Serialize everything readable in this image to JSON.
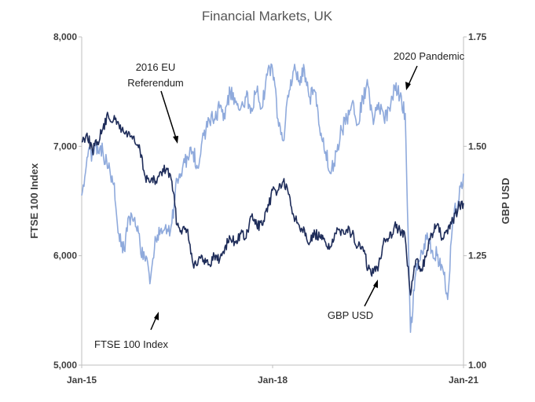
{
  "chart_data": {
    "type": "line",
    "title": "Financial Markets, UK",
    "x_ticks": [
      "Jan-15",
      "Jan-18",
      "Jan-21"
    ],
    "x_range": [
      "2015-01",
      "2021-01"
    ],
    "y_left": {
      "label": "FTSE  100  Index",
      "range": [
        5000,
        8000
      ],
      "ticks": [
        "5,000",
        "6,000",
        "7,000",
        "8,000"
      ]
    },
    "y_right": {
      "label": "GBP  USD",
      "range": [
        1.0,
        1.75
      ],
      "ticks": [
        "1.00",
        "1.25",
        "1.50",
        "1.75"
      ]
    },
    "grid": false,
    "colors": {
      "ftse": "#8faadc",
      "gbpusd": "#1f2d5a",
      "axis": "#bfbfbf"
    },
    "series": [
      {
        "name": "FTSE 100 Index",
        "axis": "left",
        "points": [
          [
            "2015-01",
            6550
          ],
          [
            "2015-02",
            6900
          ],
          [
            "2015-03",
            6950
          ],
          [
            "2015-04",
            7000
          ],
          [
            "2015-05",
            6950
          ],
          [
            "2015-06",
            6800
          ],
          [
            "2015-07",
            6650
          ],
          [
            "2015-08",
            6200
          ],
          [
            "2015-09",
            6050
          ],
          [
            "2015-10",
            6350
          ],
          [
            "2015-11",
            6350
          ],
          [
            "2015-12",
            6100
          ],
          [
            "2016-01",
            5950
          ],
          [
            "2016-02",
            5800
          ],
          [
            "2016-03",
            6150
          ],
          [
            "2016-04",
            6250
          ],
          [
            "2016-05",
            6200
          ],
          [
            "2016-06",
            6300
          ],
          [
            "2016-07",
            6700
          ],
          [
            "2016-08",
            6800
          ],
          [
            "2016-09",
            6900
          ],
          [
            "2016-10",
            6950
          ],
          [
            "2016-11",
            6800
          ],
          [
            "2016-12",
            7100
          ],
          [
            "2017-01",
            7250
          ],
          [
            "2017-02",
            7250
          ],
          [
            "2017-03",
            7350
          ],
          [
            "2017-04",
            7250
          ],
          [
            "2017-05",
            7500
          ],
          [
            "2017-06",
            7400
          ],
          [
            "2017-07",
            7350
          ],
          [
            "2017-08",
            7450
          ],
          [
            "2017-09",
            7350
          ],
          [
            "2017-10",
            7500
          ],
          [
            "2017-11",
            7350
          ],
          [
            "2017-12",
            7650
          ],
          [
            "2018-01",
            7700
          ],
          [
            "2018-02",
            7250
          ],
          [
            "2018-03",
            7050
          ],
          [
            "2018-04",
            7450
          ],
          [
            "2018-05",
            7700
          ],
          [
            "2018-06",
            7600
          ],
          [
            "2018-07",
            7700
          ],
          [
            "2018-08",
            7450
          ],
          [
            "2018-09",
            7500
          ],
          [
            "2018-10",
            7100
          ],
          [
            "2018-11",
            6950
          ],
          [
            "2018-12",
            6750
          ],
          [
            "2019-01",
            6950
          ],
          [
            "2019-02",
            7150
          ],
          [
            "2019-03",
            7250
          ],
          [
            "2019-04",
            7400
          ],
          [
            "2019-05",
            7200
          ],
          [
            "2019-06",
            7450
          ],
          [
            "2019-07",
            7550
          ],
          [
            "2019-08",
            7200
          ],
          [
            "2019-09",
            7400
          ],
          [
            "2019-10",
            7250
          ],
          [
            "2019-11",
            7350
          ],
          [
            "2019-12",
            7550
          ],
          [
            "2020-01",
            7450
          ],
          [
            "2020-02",
            7300
          ],
          [
            "2020-03",
            5300
          ],
          [
            "2020-04",
            5850
          ],
          [
            "2020-05",
            6050
          ],
          [
            "2020-06",
            6150
          ],
          [
            "2020-07",
            6050
          ],
          [
            "2020-08",
            6000
          ],
          [
            "2020-09",
            5900
          ],
          [
            "2020-10",
            5600
          ],
          [
            "2020-11",
            6350
          ],
          [
            "2020-12",
            6500
          ],
          [
            "2021-01",
            6750
          ]
        ]
      },
      {
        "name": "GBP USD",
        "axis": "right",
        "points": [
          [
            "2015-01",
            1.51
          ],
          [
            "2015-02",
            1.53
          ],
          [
            "2015-03",
            1.49
          ],
          [
            "2015-04",
            1.51
          ],
          [
            "2015-05",
            1.54
          ],
          [
            "2015-06",
            1.57
          ],
          [
            "2015-07",
            1.56
          ],
          [
            "2015-08",
            1.55
          ],
          [
            "2015-09",
            1.53
          ],
          [
            "2015-10",
            1.53
          ],
          [
            "2015-11",
            1.51
          ],
          [
            "2015-12",
            1.49
          ],
          [
            "2016-01",
            1.43
          ],
          [
            "2016-02",
            1.42
          ],
          [
            "2016-03",
            1.42
          ],
          [
            "2016-04",
            1.44
          ],
          [
            "2016-05",
            1.45
          ],
          [
            "2016-06",
            1.42
          ],
          [
            "2016-07",
            1.32
          ],
          [
            "2016-08",
            1.31
          ],
          [
            "2016-09",
            1.31
          ],
          [
            "2016-10",
            1.23
          ],
          [
            "2016-11",
            1.24
          ],
          [
            "2016-12",
            1.24
          ],
          [
            "2017-01",
            1.23
          ],
          [
            "2017-02",
            1.25
          ],
          [
            "2017-03",
            1.24
          ],
          [
            "2017-04",
            1.27
          ],
          [
            "2017-05",
            1.29
          ],
          [
            "2017-06",
            1.28
          ],
          [
            "2017-07",
            1.3
          ],
          [
            "2017-08",
            1.29
          ],
          [
            "2017-09",
            1.34
          ],
          [
            "2017-10",
            1.32
          ],
          [
            "2017-11",
            1.32
          ],
          [
            "2017-12",
            1.35
          ],
          [
            "2018-01",
            1.4
          ],
          [
            "2018-02",
            1.4
          ],
          [
            "2018-03",
            1.42
          ],
          [
            "2018-04",
            1.39
          ],
          [
            "2018-05",
            1.34
          ],
          [
            "2018-06",
            1.32
          ],
          [
            "2018-07",
            1.31
          ],
          [
            "2018-08",
            1.28
          ],
          [
            "2018-09",
            1.3
          ],
          [
            "2018-10",
            1.29
          ],
          [
            "2018-11",
            1.28
          ],
          [
            "2018-12",
            1.27
          ],
          [
            "2019-01",
            1.3
          ],
          [
            "2019-02",
            1.31
          ],
          [
            "2019-03",
            1.31
          ],
          [
            "2019-04",
            1.3
          ],
          [
            "2019-05",
            1.27
          ],
          [
            "2019-06",
            1.27
          ],
          [
            "2019-07",
            1.22
          ],
          [
            "2019-08",
            1.21
          ],
          [
            "2019-09",
            1.23
          ],
          [
            "2019-10",
            1.29
          ],
          [
            "2019-11",
            1.29
          ],
          [
            "2019-12",
            1.32
          ],
          [
            "2020-01",
            1.31
          ],
          [
            "2020-02",
            1.29
          ],
          [
            "2020-03",
            1.16
          ],
          [
            "2020-04",
            1.24
          ],
          [
            "2020-05",
            1.22
          ],
          [
            "2020-06",
            1.25
          ],
          [
            "2020-07",
            1.3
          ],
          [
            "2020-08",
            1.32
          ],
          [
            "2020-09",
            1.29
          ],
          [
            "2020-10",
            1.3
          ],
          [
            "2020-11",
            1.33
          ],
          [
            "2020-12",
            1.36
          ],
          [
            "2021-01",
            1.37
          ]
        ]
      }
    ],
    "annotations": [
      {
        "lines": [
          "2016 EU",
          "Referendum"
        ]
      },
      {
        "lines": [
          "2020 Pandemic"
        ]
      },
      {
        "lines": [
          "FTSE 100 Index"
        ]
      },
      {
        "lines": [
          "GBP USD"
        ]
      }
    ]
  }
}
